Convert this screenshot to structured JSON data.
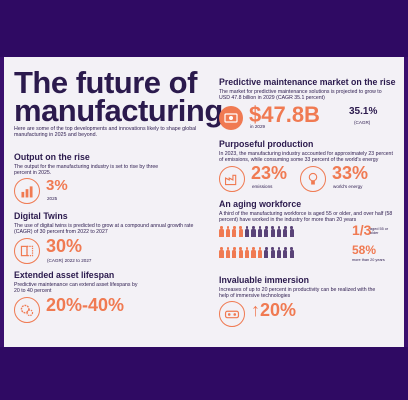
{
  "title_line1": "The future of",
  "title_line2": "manufacturing",
  "intro": "Here are some of the top developments and innovations likely to shape global manufacturing in 2025 and beyond.",
  "output": {
    "heading": "Output on the rise",
    "text": "The output for the manufacturing industry is set to rise by three percent in 2025.",
    "value": "3%",
    "caption": "2025"
  },
  "twins": {
    "heading": "Digital Twins",
    "text": "The use of digital twins is predicted to grow at a compound annual growth rate (CAGR) of 30 percent from 2022 to 2027",
    "value": "30%",
    "caption": "(CAGR) 2022 to 2027"
  },
  "lifespan": {
    "heading": "Extended asset lifespan",
    "text": "Predictive maintenance can extend asset lifespans by 20 to 40 percent",
    "value": "20%-40%"
  },
  "market": {
    "heading": "Predictive maintenance market on the rise",
    "text": "The market for predictive maintenance solutions is projected to grow to USD 47.8 billion in 2029 (CAGR 35.1 percent)",
    "value": "$47.8B",
    "value_caption": "in 2029",
    "cagr": "35.1%",
    "cagr_caption": "(CAGR)"
  },
  "purposeful": {
    "heading": "Purposeful production",
    "text": "In 2023, the manufacturing industry accounted for approximately 23 percent of emissions, while consuming some 33 percent of the world's energy",
    "value1": "23%",
    "caption1": "emissions",
    "value2": "33%",
    "caption2": "world's energy"
  },
  "aging": {
    "heading": "An aging workforce",
    "text": "A third of the manufacturing workforce is aged 55 or older, and over half (58 percent) have worked in the industry for more than 20 years",
    "value1": "1/3",
    "caption1": "aged 55 or older",
    "value2": "58%",
    "caption2": "more than 20 years",
    "row1_highlight_fraction": 0.33,
    "row2_highlight_fraction": 0.58
  },
  "immersion": {
    "heading": "Invaluable immersion",
    "text": "Increases of up to 20 percent in productivity can be realized with the help of immersive technologies",
    "value": "↑20%"
  },
  "colors": {
    "frame": "#2f0a63",
    "card": "#f3f1f6",
    "accent": "#f07a52",
    "text": "#2b1a4d",
    "person_muted": "#5a4378"
  },
  "icons": [
    "output-chart-icon",
    "digital-twin-icon",
    "asset-gear-icon",
    "market-money-icon",
    "emissions-factory-icon",
    "energy-bulb-icon",
    "vr-headset-icon",
    "person-icon"
  ]
}
